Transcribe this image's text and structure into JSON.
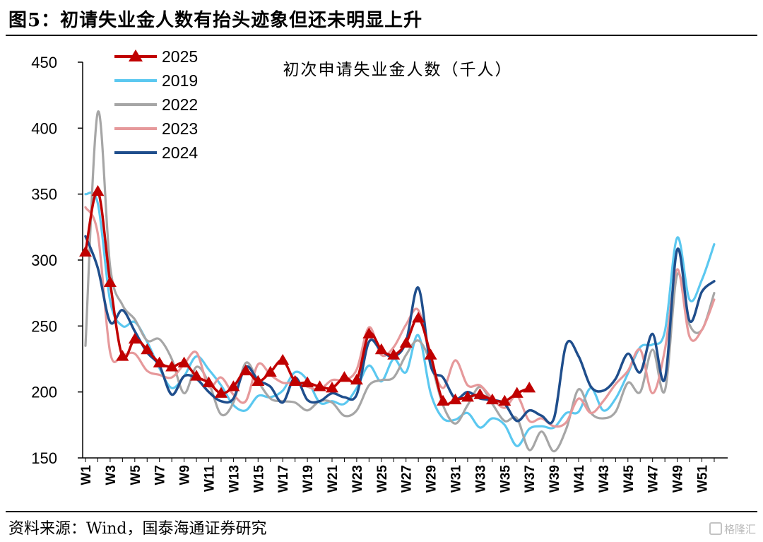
{
  "header": {
    "title": "图5：初请失业金人数有抬头迹象但还未明显上升"
  },
  "footer": {
    "source": "资料来源：Wind，国泰海通证券研究",
    "watermark": "格隆汇"
  },
  "chart_data": {
    "type": "line",
    "title": "初次申请失业金人数（千人）",
    "xlabel": "",
    "ylabel": "",
    "ylim": [
      150,
      450
    ],
    "yticks": [
      150,
      200,
      250,
      300,
      350,
      400,
      450
    ],
    "xlim": [
      1,
      52
    ],
    "xticks": [
      "W1",
      "W3",
      "W5",
      "W7",
      "W9",
      "W11",
      "W13",
      "W15",
      "W17",
      "W19",
      "W21",
      "W23",
      "W25",
      "W27",
      "W29",
      "W31",
      "W33",
      "W35",
      "W37",
      "W39",
      "W41",
      "W43",
      "W45",
      "W47",
      "W49",
      "W51"
    ],
    "grid": false,
    "legend": "top-left",
    "series": [
      {
        "name": "2025",
        "color": "#c00000",
        "marker": "triangle",
        "values": [
          306,
          352,
          283,
          227,
          240,
          232,
          222,
          219,
          222,
          212,
          207,
          199,
          204,
          216,
          208,
          215,
          224,
          208,
          207,
          204,
          203,
          211,
          209,
          244,
          232,
          228,
          237,
          256,
          228,
          193,
          194,
          196,
          198,
          194,
          193,
          199,
          203
        ]
      },
      {
        "name": "2019",
        "color": "#5bc8f0",
        "values": [
          350,
          343,
          269,
          250,
          253,
          238,
          218,
          203,
          212,
          227,
          217,
          205,
          190,
          186,
          197,
          196,
          201,
          215,
          209,
          192,
          193,
          191,
          203,
          220,
          208,
          225,
          215,
          243,
          199,
          180,
          179,
          184,
          173,
          180,
          175,
          159,
          172,
          174,
          173,
          184,
          185,
          203,
          186,
          195,
          214,
          234,
          236,
          246,
          317,
          270,
          285,
          312
        ]
      },
      {
        "name": "2022",
        "color": "#a6a6a6",
        "values": [
          235,
          412,
          295,
          266,
          255,
          239,
          240,
          225,
          199,
          219,
          207,
          183,
          192,
          222,
          208,
          195,
          193,
          192,
          186,
          193,
          192,
          182,
          186,
          205,
          209,
          211,
          228,
          239,
          222,
          190,
          176,
          190,
          204,
          191,
          178,
          180,
          156,
          170,
          155,
          172,
          202,
          184,
          180,
          185,
          207,
          200,
          232,
          201,
          289,
          251,
          247,
          275
        ]
      },
      {
        "name": "2023",
        "color": "#e6999b",
        "values": [
          340,
          320,
          230,
          228,
          229,
          216,
          213,
          211,
          221,
          230,
          204,
          211,
          198,
          193,
          221,
          213,
          207,
          207,
          204,
          202,
          209,
          209,
          217,
          249,
          228,
          234,
          251,
          262,
          225,
          203,
          224,
          205,
          205,
          195,
          188,
          197,
          178,
          180,
          174,
          177,
          195,
          184,
          193,
          206,
          216,
          232,
          199,
          232,
          293,
          242,
          247,
          270
        ]
      },
      {
        "name": "2024",
        "color": "#1f4e8c",
        "values": [
          318,
          294,
          253,
          262,
          246,
          230,
          220,
          198,
          212,
          210,
          200,
          193,
          195,
          219,
          209,
          204,
          192,
          211,
          194,
          193,
          199,
          196,
          198,
          238,
          231,
          227,
          238,
          279,
          220,
          211,
          195,
          200,
          195,
          194,
          191,
          178,
          186,
          182,
          180,
          236,
          227,
          204,
          201,
          210,
          229,
          215,
          244,
          210,
          308,
          254,
          276,
          284
        ]
      }
    ]
  }
}
